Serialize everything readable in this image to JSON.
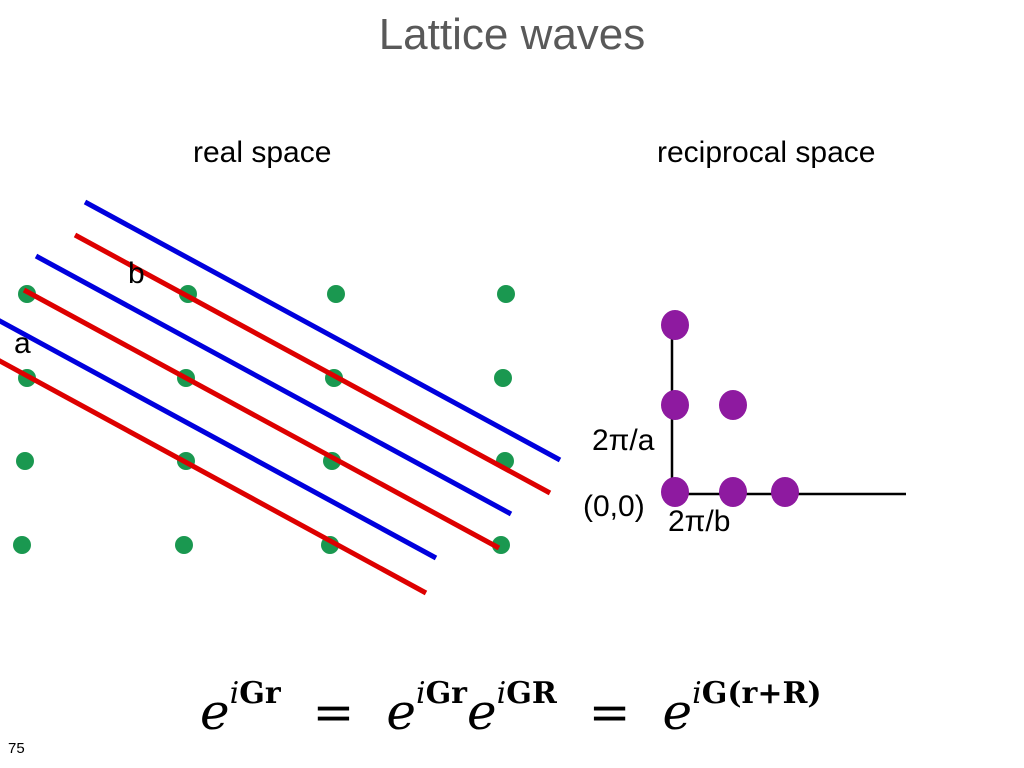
{
  "title": "Lattice waves",
  "real_space": {
    "heading": "real space",
    "label_a": "a",
    "label_b": "b",
    "dot_color": "#1a9850",
    "line_colors": [
      "#0000dd",
      "#dd0000"
    ]
  },
  "reciprocal_space": {
    "heading": "reciprocal space",
    "origin_label": "(0,0)",
    "y_spacing_label": "2π/a",
    "x_spacing_label": "2π/b",
    "dot_color": "#8e1aa0"
  },
  "formula": {
    "e": "e",
    "i": "i",
    "exp1": "Gr",
    "exp2a": "Gr",
    "exp2b": "GR",
    "exp3_letter": "G",
    "exp3_paren": "(r+R)",
    "equals": "="
  },
  "slide_number": "75"
}
